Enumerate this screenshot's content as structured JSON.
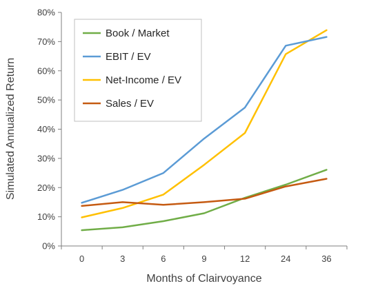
{
  "chart_data": {
    "type": "line",
    "title": "",
    "xlabel": "Months of Clairvoyance",
    "ylabel": "Simulated Annualized Return",
    "categories": [
      "0",
      "3",
      "6",
      "9",
      "12",
      "24",
      "36"
    ],
    "y_tick_labels": [
      "0%",
      "10%",
      "20%",
      "30%",
      "40%",
      "50%",
      "60%",
      "70%",
      "80%"
    ],
    "ylim": [
      0,
      80
    ],
    "y_unit": "%",
    "grid": false,
    "legend_position": "top-left",
    "series": [
      {
        "name": "Book / Market",
        "color": "#70ad47",
        "values": [
          5.4,
          6.4,
          8.5,
          11.2,
          16.5,
          21.0,
          26.1
        ]
      },
      {
        "name": "EBIT / EV",
        "color": "#5b9bd5",
        "values": [
          14.8,
          19.2,
          25.0,
          36.8,
          47.4,
          68.6,
          71.6
        ]
      },
      {
        "name": "Net-Income / EV",
        "color": "#ffc000",
        "values": [
          9.8,
          13.0,
          17.6,
          27.8,
          38.7,
          65.7,
          73.9
        ]
      },
      {
        "name": "Sales / EV",
        "color": "#c55a11",
        "values": [
          13.7,
          15.0,
          14.1,
          15.0,
          16.2,
          20.4,
          23.0
        ]
      }
    ]
  }
}
